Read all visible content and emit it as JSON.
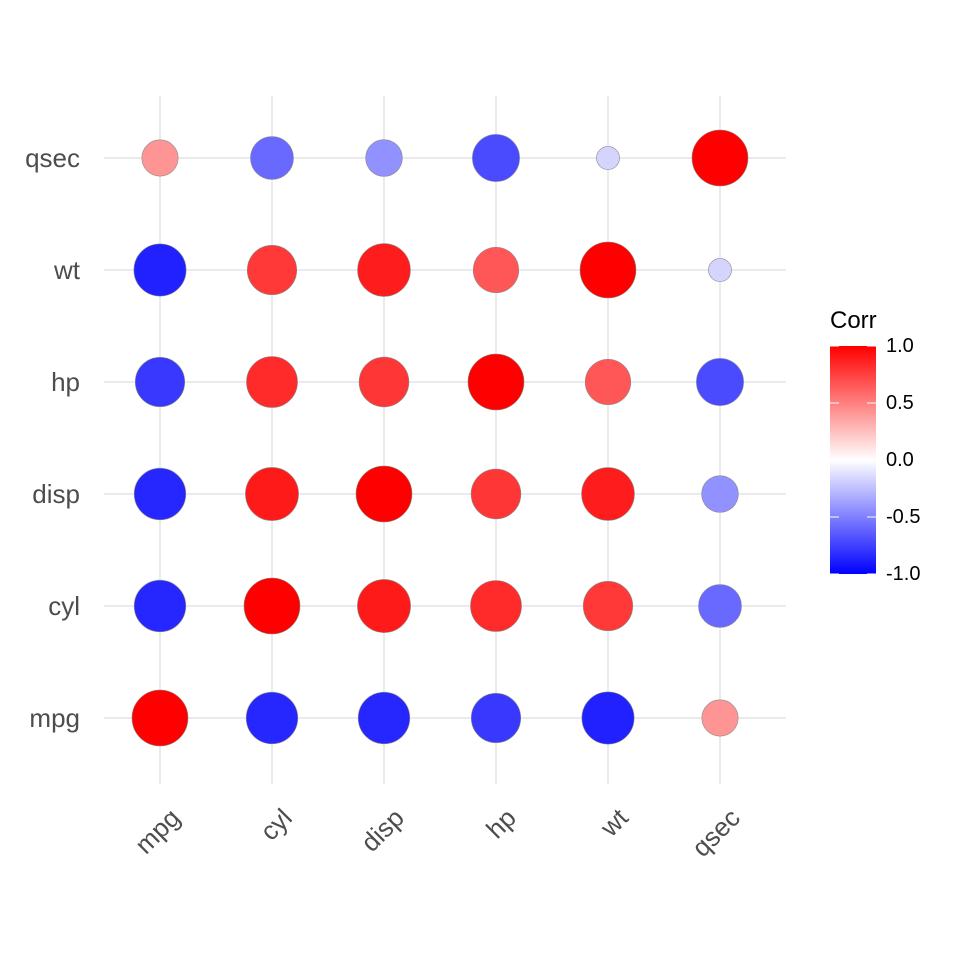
{
  "chart_data": {
    "type": "heatmap",
    "title": "",
    "xlabel": "",
    "ylabel": "",
    "variables": [
      "mpg",
      "cyl",
      "disp",
      "hp",
      "wt",
      "qsec"
    ],
    "x_tick_labels": [
      "mpg",
      "cyl",
      "disp",
      "hp",
      "wt",
      "qsec"
    ],
    "y_tick_labels": [
      "mpg",
      "cyl",
      "disp",
      "hp",
      "wt",
      "qsec"
    ],
    "matrix": [
      [
        1.0,
        -0.85,
        -0.85,
        -0.78,
        -0.87,
        0.42
      ],
      [
        -0.85,
        1.0,
        0.9,
        0.83,
        0.78,
        -0.59
      ],
      [
        -0.85,
        0.9,
        1.0,
        0.79,
        0.89,
        -0.43
      ],
      [
        -0.78,
        0.83,
        0.79,
        1.0,
        0.66,
        -0.71
      ],
      [
        -0.87,
        0.78,
        0.89,
        0.66,
        1.0,
        -0.17
      ],
      [
        0.42,
        -0.59,
        -0.43,
        -0.71,
        -0.17,
        1.0
      ]
    ],
    "circle_size_encodes": "abs(correlation)",
    "grid": true,
    "legend": {
      "title": "Corr",
      "placement": "right",
      "ticks": [
        "1.0",
        "0.5",
        "0.0",
        "-0.5",
        "-1.0"
      ],
      "range": [
        -1,
        1
      ],
      "colors": {
        "low": "#0000ff",
        "mid": "#ffffff",
        "high": "#ff0000"
      }
    }
  }
}
